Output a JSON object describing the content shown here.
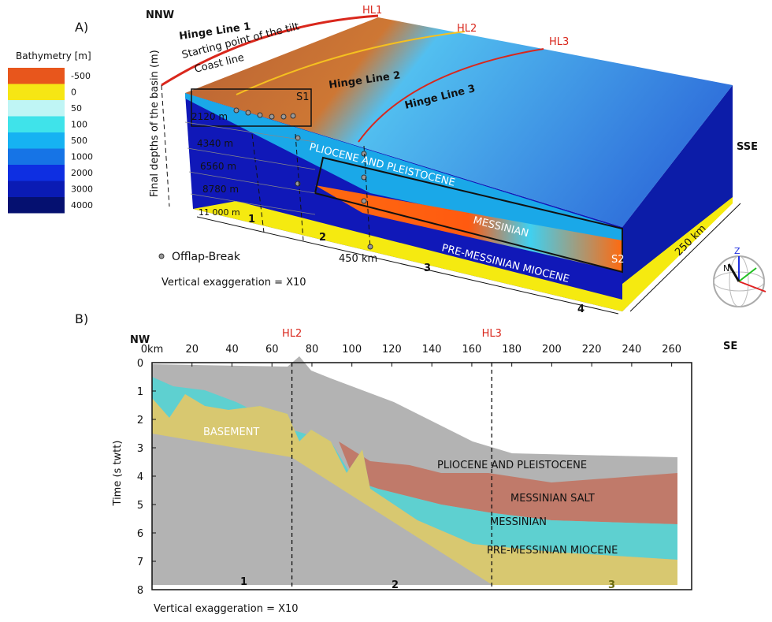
{
  "panel_a": {
    "label": "A)",
    "legend": {
      "title": "Bathymetry [m]",
      "items": [
        {
          "label": "-500",
          "color": "#e8561c"
        },
        {
          "label": "0",
          "color": "#f6e614"
        },
        {
          "label": "50",
          "color": "#bff5f5"
        },
        {
          "label": "100",
          "color": "#3fe3ea"
        },
        {
          "label": "500",
          "color": "#16b2f2"
        },
        {
          "label": "1000",
          "color": "#1674e6"
        },
        {
          "label": "2000",
          "color": "#0e2fe2"
        },
        {
          "label": "3000",
          "color": "#0a1bb4"
        },
        {
          "label": "4000",
          "color": "#051070"
        }
      ]
    },
    "nnw": "NNW",
    "sse": "SSE",
    "hinge_line_1": "Hinge Line 1",
    "hinge_line_2": "Hinge Line 2",
    "hinge_line_3": "Hinge Line 3",
    "hl1": "HL1",
    "hl2": "HL2",
    "hl3": "HL3",
    "start_tilt": "Starting point of the tilt",
    "coast_line": "Coast line",
    "s1": "S1",
    "s2": "S2",
    "depth_axis_title": "Final depths of the basin (m)",
    "depths": [
      "2120 m",
      "4340 m",
      "6560 m",
      "8780 m",
      "11 000 m"
    ],
    "units": {
      "pliocene": "PLIOCENE AND PLEISTOCENE",
      "messinian": "MESSINIAN",
      "pre_messinian": "PRE-MESSINIAN MIOCENE"
    },
    "zones": [
      "1",
      "2",
      "3",
      "4"
    ],
    "length": "450 km",
    "width": "250 km",
    "offlap": "Offlap-Break",
    "exaggeration": "Vertical exaggeration = X10",
    "compass": [
      "Z",
      "N"
    ]
  },
  "panel_b": {
    "label": "B)",
    "nw": "NW",
    "se": "SE",
    "y_title": "Time (s twtt)",
    "xlim": [
      0,
      270
    ],
    "ylim": [
      0,
      8
    ],
    "xticks": [
      {
        "value": 0,
        "label": "0km"
      },
      20,
      40,
      60,
      80,
      100,
      120,
      140,
      160,
      180,
      200,
      220,
      240,
      260
    ],
    "yticks": [
      0,
      1,
      2,
      3,
      4,
      5,
      6,
      7,
      8
    ],
    "hinge_lines": [
      {
        "label": "HL2",
        "value": 70
      },
      {
        "label": "HL3",
        "value": 170
      }
    ],
    "units": {
      "basement": "BASEMENT",
      "pliocene": "PLIOCENE AND PLEISTOCENE",
      "salt": "MESSINIAN SALT",
      "messinian": "MESSINIAN",
      "pre_messinian": "PRE-MESSINIAN MIOCENE"
    },
    "zones": [
      "1",
      "2",
      "3"
    ],
    "exaggeration": "Vertical exaggeration = X10"
  }
}
